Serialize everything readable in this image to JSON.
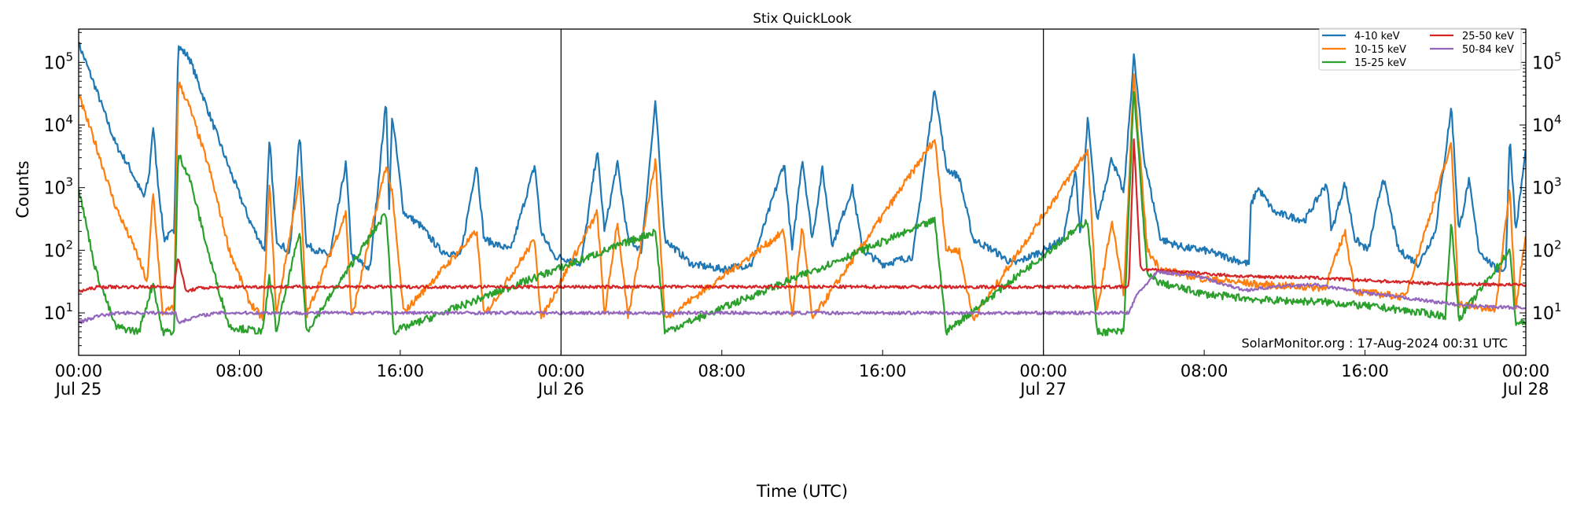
{
  "chart_data": {
    "type": "line",
    "title": "Stix QuickLook",
    "xlabel": "Time (UTC)",
    "ylabel": "Counts",
    "yscale": "log",
    "ylim": [
      2.1,
      340000
    ],
    "xlim": [
      "2024-07-25 00:00",
      "2024-07-28 00:00"
    ],
    "x_ticks": [
      {
        "time": "2024-07-25 00:00",
        "label": "00:00",
        "sublabel": "Jul 25"
      },
      {
        "time": "2024-07-25 08:00",
        "label": "08:00",
        "sublabel": ""
      },
      {
        "time": "2024-07-25 16:00",
        "label": "16:00",
        "sublabel": ""
      },
      {
        "time": "2024-07-26 00:00",
        "label": "00:00",
        "sublabel": "Jul 26"
      },
      {
        "time": "2024-07-26 08:00",
        "label": "08:00",
        "sublabel": ""
      },
      {
        "time": "2024-07-26 16:00",
        "label": "16:00",
        "sublabel": ""
      },
      {
        "time": "2024-07-27 00:00",
        "label": "00:00",
        "sublabel": "Jul 27"
      },
      {
        "time": "2024-07-27 08:00",
        "label": "08:00",
        "sublabel": ""
      },
      {
        "time": "2024-07-27 16:00",
        "label": "16:00",
        "sublabel": ""
      },
      {
        "time": "2024-07-28 00:00",
        "label": "00:00",
        "sublabel": "Jul 28"
      }
    ],
    "y_ticks": [
      {
        "value": 10,
        "base": "10",
        "exp": "1"
      },
      {
        "value": 100,
        "base": "10",
        "exp": "2"
      },
      {
        "value": 1000,
        "base": "10",
        "exp": "3"
      },
      {
        "value": 10000,
        "base": "10",
        "exp": "4"
      },
      {
        "value": 100000,
        "base": "10",
        "exp": "5"
      }
    ],
    "day_lines": [
      "2024-07-26 00:00",
      "2024-07-27 00:00"
    ],
    "grid": false,
    "legend_position": "top-right",
    "annotation": "SolarMonitor.org : 17-Aug-2024 00:31 UTC",
    "series": [
      {
        "name": "4-10 keV",
        "color": "#1f77b4",
        "points": [
          [
            "2024-07-25 00:00",
            200000
          ],
          [
            "2024-07-25 00:50",
            40000
          ],
          [
            "2024-07-25 01:50",
            5000
          ],
          [
            "2024-07-25 02:30",
            2200
          ],
          [
            "2024-07-25 03:15",
            700
          ],
          [
            "2024-07-25 03:30",
            1500
          ],
          [
            "2024-07-25 03:42",
            10000
          ],
          [
            "2024-07-25 03:55",
            1500
          ],
          [
            "2024-07-25 04:15",
            150
          ],
          [
            "2024-07-25 04:45",
            200
          ],
          [
            "2024-07-25 04:57",
            180000
          ],
          [
            "2024-07-25 05:30",
            120000
          ],
          [
            "2024-07-25 06:30",
            15000
          ],
          [
            "2024-07-25 07:30",
            2000
          ],
          [
            "2024-07-25 08:30",
            300
          ],
          [
            "2024-07-25 09:15",
            100
          ],
          [
            "2024-07-25 09:30",
            6000
          ],
          [
            "2024-07-25 09:50",
            150
          ],
          [
            "2024-07-25 10:30",
            90
          ],
          [
            "2024-07-25 11:00",
            7000
          ],
          [
            "2024-07-25 11:20",
            120
          ],
          [
            "2024-07-25 12:30",
            80
          ],
          [
            "2024-07-25 13:18",
            2500
          ],
          [
            "2024-07-25 13:35",
            80
          ],
          [
            "2024-07-25 14:30",
            50
          ],
          [
            "2024-07-25 15:18",
            25000
          ],
          [
            "2024-07-25 15:27",
            500
          ],
          [
            "2024-07-25 15:36",
            15000
          ],
          [
            "2024-07-25 16:10",
            400
          ],
          [
            "2024-07-25 17:00",
            250
          ],
          [
            "2024-07-25 18:00",
            100
          ],
          [
            "2024-07-25 19:00",
            80
          ],
          [
            "2024-07-25 19:48",
            2500
          ],
          [
            "2024-07-25 20:10",
            150
          ],
          [
            "2024-07-25 21:30",
            100
          ],
          [
            "2024-07-25 22:42",
            2300
          ],
          [
            "2024-07-25 23:00",
            200
          ],
          [
            "2024-07-25 23:40",
            80
          ],
          [
            "2024-07-26 00:30",
            70
          ],
          [
            "2024-07-26 01:00",
            60
          ],
          [
            "2024-07-26 01:48",
            4000
          ],
          [
            "2024-07-26 02:10",
            200
          ],
          [
            "2024-07-26 02:48",
            2500
          ],
          [
            "2024-07-26 03:20",
            150
          ],
          [
            "2024-07-26 04:00",
            100
          ],
          [
            "2024-07-26 04:42",
            23000
          ],
          [
            "2024-07-26 05:10",
            150
          ],
          [
            "2024-07-26 06:30",
            60
          ],
          [
            "2024-07-26 08:00",
            50
          ],
          [
            "2024-07-26 09:30",
            60
          ],
          [
            "2024-07-26 11:06",
            2500
          ],
          [
            "2024-07-26 11:30",
            100
          ],
          [
            "2024-07-26 12:00",
            3000
          ],
          [
            "2024-07-26 12:30",
            150
          ],
          [
            "2024-07-26 13:00",
            2000
          ],
          [
            "2024-07-26 13:30",
            120
          ],
          [
            "2024-07-26 14:30",
            1000
          ],
          [
            "2024-07-26 15:00",
            100
          ],
          [
            "2024-07-26 16:00",
            60
          ],
          [
            "2024-07-26 17:30",
            80
          ],
          [
            "2024-07-26 18:36",
            40000
          ],
          [
            "2024-07-26 19:10",
            2000
          ],
          [
            "2024-07-26 19:48",
            1500
          ],
          [
            "2024-07-26 20:30",
            150
          ],
          [
            "2024-07-26 21:30",
            100
          ],
          [
            "2024-07-26 22:30",
            60
          ],
          [
            "2024-07-27 00:00",
            100
          ],
          [
            "2024-07-27 01:00",
            150
          ],
          [
            "2024-07-27 01:36",
            2000
          ],
          [
            "2024-07-27 01:50",
            150
          ],
          [
            "2024-07-27 02:12",
            13000
          ],
          [
            "2024-07-27 02:40",
            300
          ],
          [
            "2024-07-27 03:24",
            3000
          ],
          [
            "2024-07-27 04:00",
            800
          ],
          [
            "2024-07-27 04:30",
            130000
          ],
          [
            "2024-07-27 05:00",
            3000
          ],
          [
            "2024-07-27 05:50",
            150
          ],
          [
            "2024-07-27 07:00",
            110
          ],
          [
            "2024-07-27 08:00",
            100
          ],
          [
            "2024-07-27 09:00",
            80
          ],
          [
            "2024-07-27 10:15",
            60
          ],
          [
            "2024-07-27 10:18",
            500
          ],
          [
            "2024-07-27 10:40",
            1000
          ],
          [
            "2024-07-27 11:30",
            400
          ],
          [
            "2024-07-27 13:00",
            300
          ],
          [
            "2024-07-27 14:06",
            1200
          ],
          [
            "2024-07-27 14:20",
            200
          ],
          [
            "2024-07-27 15:00",
            1200
          ],
          [
            "2024-07-27 15:30",
            150
          ],
          [
            "2024-07-27 16:10",
            100
          ],
          [
            "2024-07-27 16:54",
            1500
          ],
          [
            "2024-07-27 17:40",
            100
          ],
          [
            "2024-07-27 18:40",
            60
          ],
          [
            "2024-07-27 19:30",
            200
          ],
          [
            "2024-07-27 20:18",
            20000
          ],
          [
            "2024-07-27 20:40",
            200
          ],
          [
            "2024-07-27 21:10",
            1300
          ],
          [
            "2024-07-27 21:40",
            100
          ],
          [
            "2024-07-27 22:30",
            50
          ],
          [
            "2024-07-27 23:00",
            50
          ],
          [
            "2024-07-27 23:12",
            7000
          ],
          [
            "2024-07-27 23:30",
            200
          ],
          [
            "2024-07-28 00:00",
            4000
          ]
        ]
      },
      {
        "name": "10-15 keV",
        "color": "#ff7f0e",
        "points": [
          [
            "2024-07-25 00:00",
            30000
          ],
          [
            "2024-07-25 00:50",
            5000
          ],
          [
            "2024-07-25 01:50",
            500
          ],
          [
            "2024-07-25 02:50",
            100
          ],
          [
            "2024-07-25 03:25",
            30
          ],
          [
            "2024-07-25 03:42",
            900
          ],
          [
            "2024-07-25 04:10",
            10
          ],
          [
            "2024-07-25 04:45",
            12
          ],
          [
            "2024-07-25 04:57",
            50000
          ],
          [
            "2024-07-25 05:30",
            20000
          ],
          [
            "2024-07-25 06:30",
            2000
          ],
          [
            "2024-07-25 07:30",
            100
          ],
          [
            "2024-07-25 08:30",
            15
          ],
          [
            "2024-07-25 09:10",
            8
          ],
          [
            "2024-07-25 09:30",
            1200
          ],
          [
            "2024-07-25 09:50",
            9
          ],
          [
            "2024-07-25 11:00",
            1500
          ],
          [
            "2024-07-25 11:20",
            9
          ],
          [
            "2024-07-25 13:18",
            400
          ],
          [
            "2024-07-25 13:35",
            8
          ],
          [
            "2024-07-25 15:18",
            2300
          ],
          [
            "2024-07-25 15:36",
            800
          ],
          [
            "2024-07-25 16:10",
            10
          ],
          [
            "2024-07-25 19:48",
            200
          ],
          [
            "2024-07-25 20:10",
            9
          ],
          [
            "2024-07-25 22:42",
            150
          ],
          [
            "2024-07-25 23:00",
            8
          ],
          [
            "2024-07-26 01:48",
            400
          ],
          [
            "2024-07-26 02:10",
            9
          ],
          [
            "2024-07-26 02:48",
            300
          ],
          [
            "2024-07-26 03:20",
            8
          ],
          [
            "2024-07-26 04:42",
            2800
          ],
          [
            "2024-07-26 05:10",
            8
          ],
          [
            "2024-07-26 11:06",
            200
          ],
          [
            "2024-07-26 11:30",
            8
          ],
          [
            "2024-07-26 12:00",
            250
          ],
          [
            "2024-07-26 12:30",
            8
          ],
          [
            "2024-07-26 18:36",
            6000
          ],
          [
            "2024-07-26 19:10",
            100
          ],
          [
            "2024-07-26 19:48",
            100
          ],
          [
            "2024-07-26 20:30",
            8
          ],
          [
            "2024-07-27 02:12",
            4000
          ],
          [
            "2024-07-27 02:40",
            10
          ],
          [
            "2024-07-27 03:24",
            300
          ],
          [
            "2024-07-27 04:00",
            20
          ],
          [
            "2024-07-27 04:30",
            60000
          ],
          [
            "2024-07-27 05:10",
            100
          ],
          [
            "2024-07-27 05:50",
            50
          ],
          [
            "2024-07-27 08:00",
            35
          ],
          [
            "2024-07-27 11:00",
            28
          ],
          [
            "2024-07-27 14:00",
            25
          ],
          [
            "2024-07-27 15:00",
            200
          ],
          [
            "2024-07-27 15:30",
            22
          ],
          [
            "2024-07-27 18:00",
            18
          ],
          [
            "2024-07-27 20:18",
            5000
          ],
          [
            "2024-07-27 20:40",
            14
          ],
          [
            "2024-07-27 22:30",
            11
          ],
          [
            "2024-07-27 23:12",
            1000
          ],
          [
            "2024-07-27 23:30",
            12
          ],
          [
            "2024-07-28 00:00",
            200
          ]
        ]
      },
      {
        "name": "15-25 keV",
        "color": "#2ca02c",
        "points": [
          [
            "2024-07-25 00:00",
            1000
          ],
          [
            "2024-07-25 00:50",
            50
          ],
          [
            "2024-07-25 01:50",
            6
          ],
          [
            "2024-07-25 03:00",
            5
          ],
          [
            "2024-07-25 03:42",
            30
          ],
          [
            "2024-07-25 04:10",
            5
          ],
          [
            "2024-07-25 04:45",
            5
          ],
          [
            "2024-07-25 04:57",
            3500
          ],
          [
            "2024-07-25 05:30",
            1500
          ],
          [
            "2024-07-25 06:30",
            80
          ],
          [
            "2024-07-25 07:30",
            6
          ],
          [
            "2024-07-25 09:10",
            5
          ],
          [
            "2024-07-25 09:30",
            40
          ],
          [
            "2024-07-25 09:50",
            5
          ],
          [
            "2024-07-25 11:00",
            200
          ],
          [
            "2024-07-25 11:20",
            5
          ],
          [
            "2024-07-25 15:18",
            400
          ],
          [
            "2024-07-25 15:40",
            5
          ],
          [
            "2024-07-26 04:42",
            200
          ],
          [
            "2024-07-26 05:10",
            5
          ],
          [
            "2024-07-26 18:36",
            300
          ],
          [
            "2024-07-26 19:10",
            5
          ],
          [
            "2024-07-27 02:12",
            300
          ],
          [
            "2024-07-27 02:40",
            5
          ],
          [
            "2024-07-27 04:00",
            5
          ],
          [
            "2024-07-27 04:30",
            40000
          ],
          [
            "2024-07-27 05:10",
            40
          ],
          [
            "2024-07-27 05:50",
            30
          ],
          [
            "2024-07-27 08:00",
            20
          ],
          [
            "2024-07-27 11:00",
            16
          ],
          [
            "2024-07-27 14:00",
            15
          ],
          [
            "2024-07-27 17:00",
            12
          ],
          [
            "2024-07-27 20:00",
            9
          ],
          [
            "2024-07-27 20:18",
            300
          ],
          [
            "2024-07-27 20:40",
            8
          ],
          [
            "2024-07-27 23:12",
            100
          ],
          [
            "2024-07-27 23:30",
            7
          ],
          [
            "2024-07-28 00:00",
            7
          ]
        ]
      },
      {
        "name": "25-50 keV",
        "color": "#d62728",
        "points": [
          [
            "2024-07-25 00:00",
            22
          ],
          [
            "2024-07-25 01:00",
            26
          ],
          [
            "2024-07-25 04:45",
            26
          ],
          [
            "2024-07-25 04:57",
            80
          ],
          [
            "2024-07-25 05:20",
            22
          ],
          [
            "2024-07-25 06:00",
            25
          ],
          [
            "2024-07-25 08:00",
            26
          ],
          [
            "2024-07-27 04:15",
            26
          ],
          [
            "2024-07-27 04:30",
            6000
          ],
          [
            "2024-07-27 04:50",
            50
          ],
          [
            "2024-07-27 07:00",
            45
          ],
          [
            "2024-07-27 10:00",
            38
          ],
          [
            "2024-07-27 13:00",
            37
          ],
          [
            "2024-07-27 16:00",
            33
          ],
          [
            "2024-07-27 20:00",
            29
          ],
          [
            "2024-07-28 00:00",
            28
          ]
        ]
      },
      {
        "name": "50-84 keV",
        "color": "#9467bd",
        "points": [
          [
            "2024-07-25 00:00",
            7
          ],
          [
            "2024-07-25 01:00",
            9
          ],
          [
            "2024-07-25 02:00",
            10
          ],
          [
            "2024-07-25 04:50",
            10
          ],
          [
            "2024-07-25 04:57",
            7
          ],
          [
            "2024-07-25 06:00",
            9
          ],
          [
            "2024-07-25 07:00",
            10
          ],
          [
            "2024-07-27 04:15",
            10
          ],
          [
            "2024-07-27 04:40",
            20
          ],
          [
            "2024-07-27 05:40",
            45
          ],
          [
            "2024-07-27 07:30",
            40
          ],
          [
            "2024-07-27 10:00",
            23
          ],
          [
            "2024-07-27 12:00",
            27
          ],
          [
            "2024-07-27 13:30",
            28
          ],
          [
            "2024-07-27 16:30",
            20
          ],
          [
            "2024-07-27 21:00",
            13
          ],
          [
            "2024-07-28 00:00",
            12
          ]
        ]
      }
    ]
  }
}
